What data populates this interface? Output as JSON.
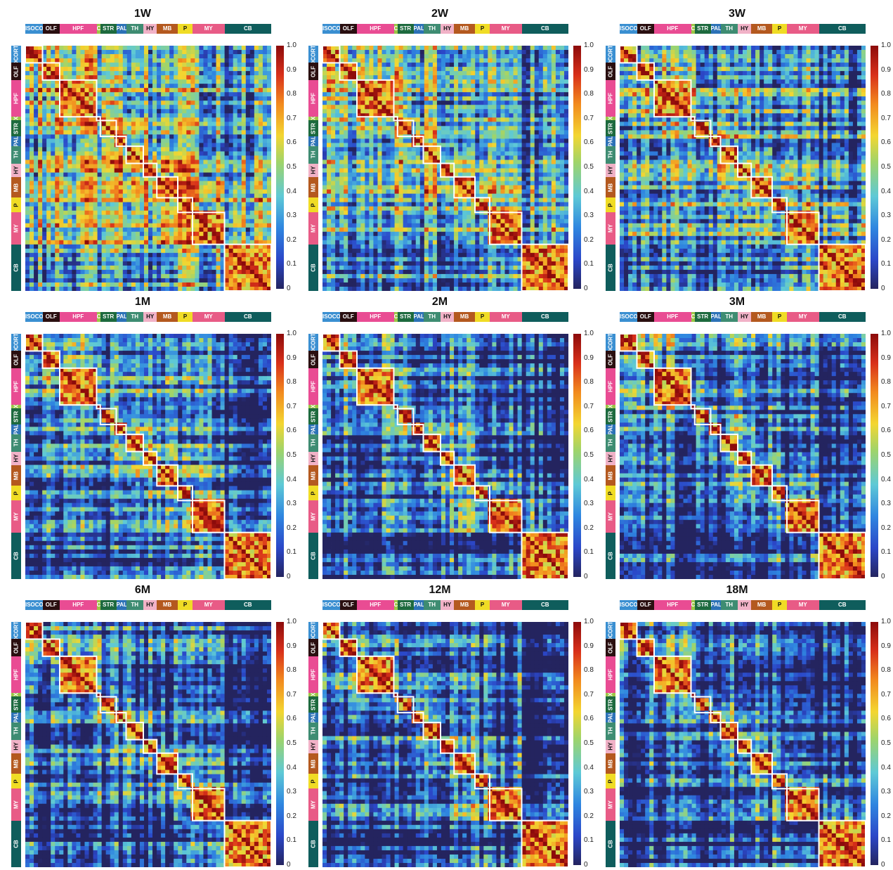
{
  "figure": {
    "panel_titles": [
      "1W",
      "2W",
      "3W",
      "1M",
      "2M",
      "3M",
      "6M",
      "12M",
      "18M"
    ],
    "regions": [
      {
        "label": "ISOCORTEX",
        "color": "#3a8fd1",
        "frac": 0.07
      },
      {
        "label": "OLF",
        "color": "#2a0f10",
        "frac": 0.07
      },
      {
        "label": "HPF",
        "color": "#e94c93",
        "frac": 0.15
      },
      {
        "label": "CTXsp",
        "color": "#9bc646",
        "frac": 0.015
      },
      {
        "label": "STR",
        "color": "#1d6a3e",
        "frac": 0.065
      },
      {
        "label": "PAL",
        "color": "#2c72b7",
        "frac": 0.04
      },
      {
        "label": "TH",
        "color": "#3e8c72",
        "frac": 0.07
      },
      {
        "label": "HY",
        "color": "#f1b2c7",
        "frac": 0.055
      },
      {
        "label": "MB",
        "color": "#b4591f",
        "frac": 0.085
      },
      {
        "label": "P",
        "color": "#f0dc25",
        "frac": 0.06
      },
      {
        "label": "MY",
        "color": "#e85b86",
        "frac": 0.13
      },
      {
        "label": "CB",
        "color": "#0f5d5c",
        "frac": 0.19
      }
    ],
    "colorbar_ticks": [
      "1.0",
      "0.9",
      "0.8",
      "0.7",
      "0.6",
      "0.5",
      "0.4",
      "0.3",
      "0.2",
      "0.1",
      "0"
    ]
  },
  "chart_data": {
    "type": "heatmap",
    "value_range": [
      0,
      1
    ],
    "colormap": "jet",
    "colors": {
      "low": "#24245f",
      "mid": "#9fd46a",
      "high": "#8c0b0b",
      "box": "#ffffff"
    },
    "panels": [
      {
        "title": "1W",
        "background": 0.45
      },
      {
        "title": "2W",
        "background": 0.38
      },
      {
        "title": "3W",
        "background": 0.33
      },
      {
        "title": "1M",
        "background": 0.2
      },
      {
        "title": "2M",
        "background": 0.17
      },
      {
        "title": "3M",
        "background": 0.17
      },
      {
        "title": "6M",
        "background": 0.15
      },
      {
        "title": "12M",
        "background": 0.15
      },
      {
        "title": "18M",
        "background": 0.13
      }
    ]
  }
}
